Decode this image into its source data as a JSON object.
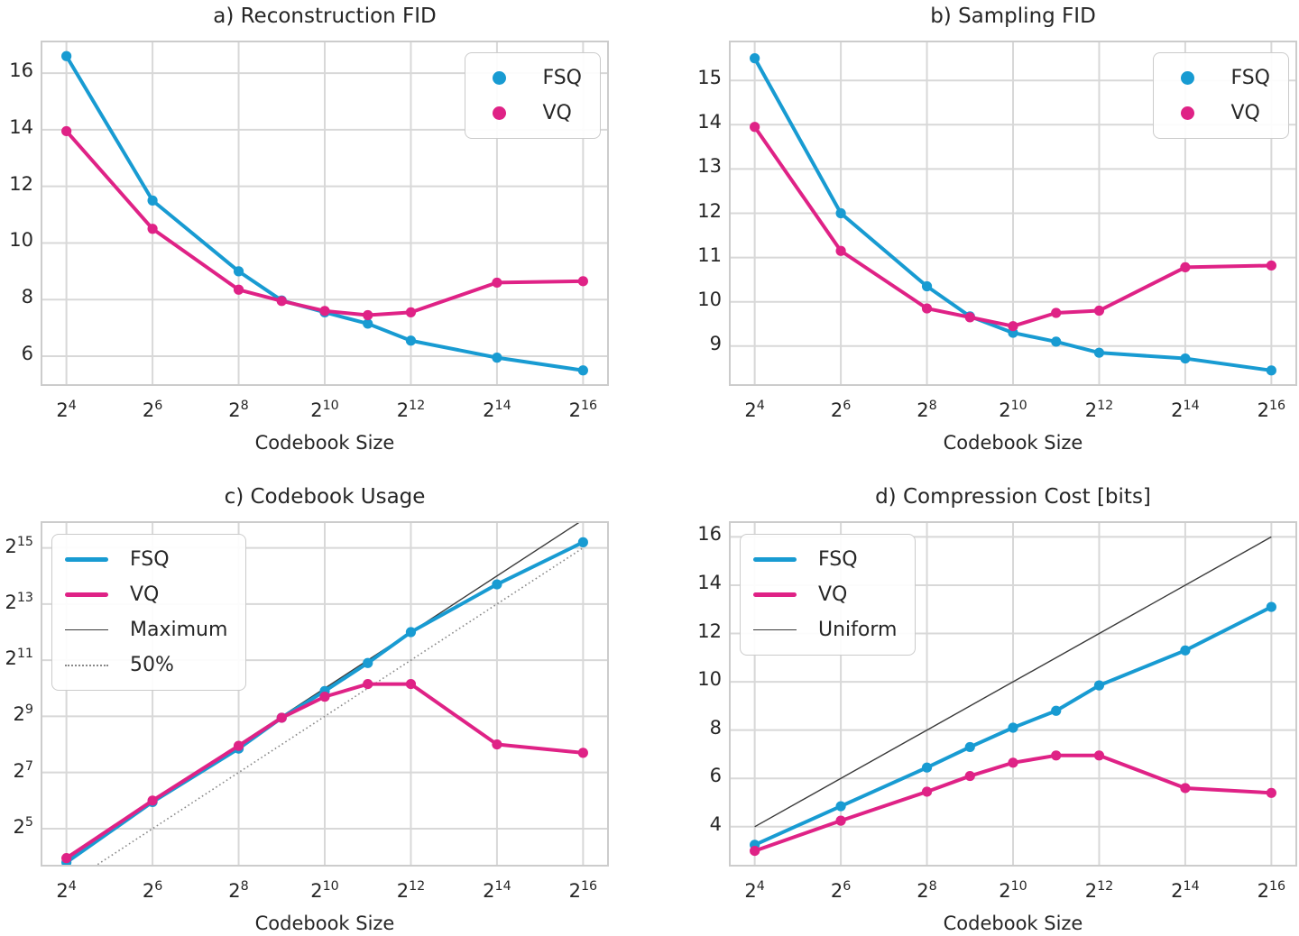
{
  "figure": {
    "background": "#ffffff",
    "grid_color": "#d8d8d8",
    "spine_color": "#cccccc",
    "text_color": "#262626",
    "fsq_color": "#189bd2",
    "vq_color": "#df2286"
  },
  "chart_data": [
    {
      "panel": "a",
      "type": "line",
      "title": "a) Reconstruction FID",
      "xlabel": "Codebook Size",
      "x_scale": "log2",
      "x_exponents": [
        4,
        6,
        8,
        9,
        10,
        11,
        12,
        14,
        16
      ],
      "x_tick_exponents": [
        4,
        6,
        8,
        10,
        12,
        14,
        16
      ],
      "xlim": [
        3.4,
        16.6
      ],
      "ylim": [
        4.95,
        17.15
      ],
      "yticks": [
        6,
        8,
        10,
        12,
        14,
        16
      ],
      "ytick_style": "plain",
      "grid": true,
      "legend": {
        "position": "top-right",
        "marker": "dot"
      },
      "series": [
        {
          "name": "FSQ",
          "color": "#189bd2",
          "values": [
            16.6,
            11.5,
            9.0,
            7.97,
            7.55,
            7.15,
            6.55,
            5.95,
            5.5
          ]
        },
        {
          "name": "VQ",
          "color": "#df2286",
          "values": [
            13.95,
            10.5,
            8.35,
            7.95,
            7.6,
            7.45,
            7.55,
            8.6,
            8.65
          ]
        }
      ]
    },
    {
      "panel": "b",
      "type": "line",
      "title": "b) Sampling FID",
      "xlabel": "Codebook Size",
      "x_scale": "log2",
      "x_exponents": [
        4,
        6,
        8,
        9,
        10,
        11,
        12,
        14,
        16
      ],
      "x_tick_exponents": [
        4,
        6,
        8,
        10,
        12,
        14,
        16
      ],
      "xlim": [
        3.4,
        16.6
      ],
      "ylim": [
        8.1,
        15.9
      ],
      "yticks": [
        9,
        10,
        11,
        12,
        13,
        14,
        15
      ],
      "ytick_style": "plain",
      "grid": true,
      "legend": {
        "position": "top-right",
        "marker": "dot"
      },
      "series": [
        {
          "name": "FSQ",
          "color": "#189bd2",
          "values": [
            15.5,
            12.0,
            10.35,
            9.67,
            9.3,
            9.1,
            8.85,
            8.72,
            8.45
          ]
        },
        {
          "name": "VQ",
          "color": "#df2286",
          "values": [
            13.95,
            11.15,
            9.85,
            9.65,
            9.45,
            9.75,
            9.8,
            10.78,
            10.82
          ]
        }
      ]
    },
    {
      "panel": "c",
      "type": "line",
      "title": "c) Codebook Usage",
      "xlabel": "Codebook Size",
      "x_scale": "log2",
      "y_scale": "log2",
      "values_are_log2": true,
      "x_exponents": [
        4,
        6,
        8,
        9,
        10,
        11,
        12,
        14,
        16
      ],
      "x_tick_exponents": [
        4,
        6,
        8,
        10,
        12,
        14,
        16
      ],
      "xlim": [
        3.4,
        16.6
      ],
      "ylim": [
        3.65,
        15.95
      ],
      "yticks": [
        5,
        7,
        9,
        11,
        13,
        15
      ],
      "ytick_style": "pow2",
      "grid": true,
      "legend": {
        "position": "top-left",
        "marker": "line"
      },
      "series": [
        {
          "name": "FSQ",
          "color": "#189bd2",
          "values": [
            3.8,
            5.95,
            7.85,
            8.95,
            9.9,
            10.9,
            12.0,
            13.7,
            15.2
          ]
        },
        {
          "name": "VQ",
          "color": "#df2286",
          "values": [
            3.95,
            6.0,
            7.95,
            8.95,
            9.7,
            10.15,
            10.15,
            8.0,
            7.7
          ]
        }
      ],
      "ref_lines": [
        {
          "name": "Maximum",
          "color": "#3a3a3a",
          "style": "solid",
          "width": 1.4,
          "points": [
            [
              4,
              4
            ],
            [
              16,
              16
            ]
          ]
        },
        {
          "name": "50%",
          "color": "#888888",
          "style": "dotted",
          "width": 1.6,
          "dash": "1.6 3",
          "points": [
            [
              4,
              3
            ],
            [
              16,
              15
            ]
          ]
        }
      ]
    },
    {
      "panel": "d",
      "type": "line",
      "title": "d) Compression Cost [bits]",
      "xlabel": "Codebook Size",
      "x_scale": "log2",
      "x_exponents": [
        4,
        6,
        8,
        9,
        10,
        11,
        12,
        14,
        16
      ],
      "x_tick_exponents": [
        4,
        6,
        8,
        10,
        12,
        14,
        16
      ],
      "xlim": [
        3.4,
        16.6
      ],
      "ylim": [
        2.35,
        16.65
      ],
      "yticks": [
        4,
        6,
        8,
        10,
        12,
        14,
        16
      ],
      "ytick_style": "plain",
      "grid": true,
      "legend": {
        "position": "top-left",
        "marker": "line"
      },
      "series": [
        {
          "name": "FSQ",
          "color": "#189bd2",
          "values": [
            3.25,
            4.85,
            6.45,
            7.3,
            8.1,
            8.8,
            9.85,
            11.3,
            13.1
          ]
        },
        {
          "name": "VQ",
          "color": "#df2286",
          "values": [
            3.0,
            4.25,
            5.45,
            6.1,
            6.65,
            6.95,
            6.95,
            5.6,
            5.4
          ]
        }
      ],
      "ref_lines": [
        {
          "name": "Uniform",
          "color": "#3a3a3a",
          "style": "solid",
          "width": 1.4,
          "points": [
            [
              4,
              4
            ],
            [
              16,
              16
            ]
          ]
        }
      ]
    }
  ]
}
